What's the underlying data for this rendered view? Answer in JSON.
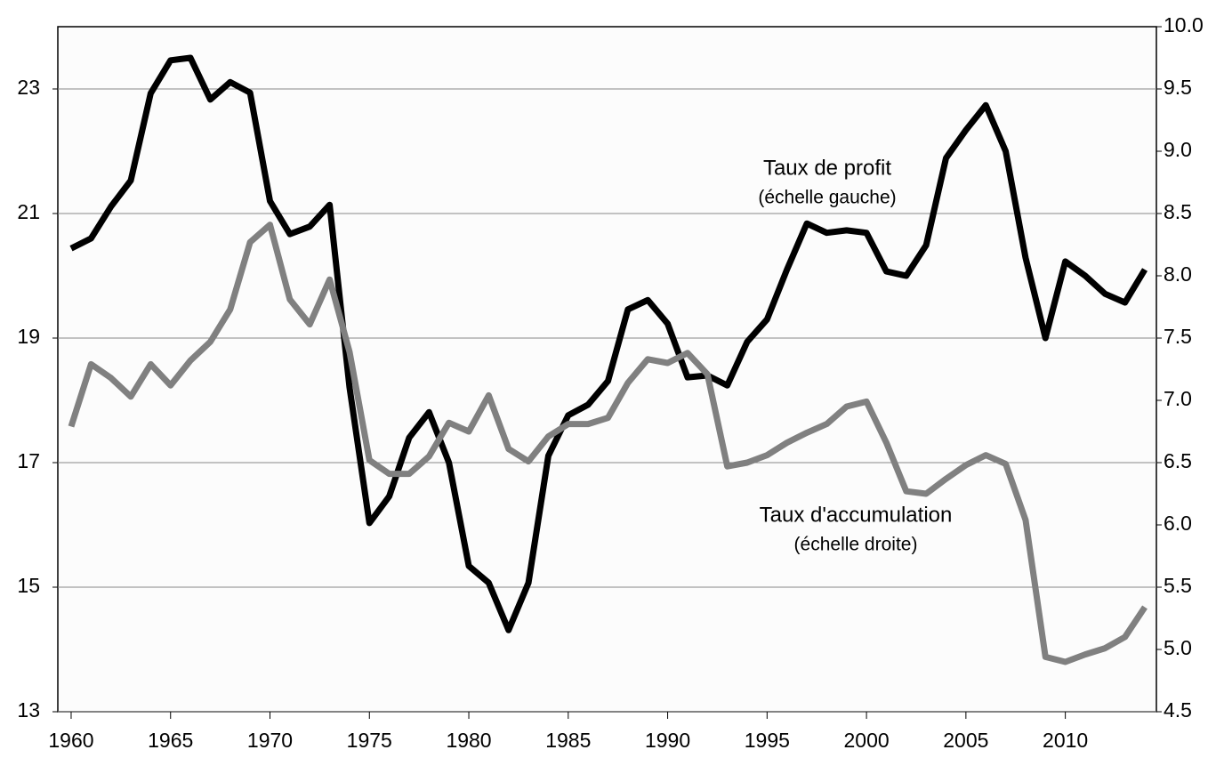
{
  "chart_data": {
    "type": "line",
    "x": [
      1960,
      1961,
      1962,
      1963,
      1964,
      1965,
      1966,
      1967,
      1968,
      1969,
      1970,
      1971,
      1972,
      1973,
      1974,
      1975,
      1976,
      1977,
      1978,
      1979,
      1980,
      1981,
      1982,
      1983,
      1984,
      1985,
      1986,
      1987,
      1988,
      1989,
      1990,
      1991,
      1992,
      1993,
      1994,
      1995,
      1996,
      1997,
      1998,
      1999,
      2000,
      2001,
      2002,
      2003,
      2004,
      2005,
      2006,
      2007,
      2008,
      2009,
      2010,
      2011,
      2012,
      2013,
      2014
    ],
    "series": [
      {
        "name": "Taux de profit",
        "color": "#000000",
        "axis": "y",
        "values": [
          20.44,
          20.6,
          21.11,
          21.53,
          22.93,
          23.46,
          23.5,
          22.83,
          23.11,
          22.94,
          21.2,
          20.67,
          20.79,
          21.14,
          18.21,
          16.03,
          16.46,
          17.4,
          17.81,
          17.0,
          15.34,
          15.07,
          14.31,
          15.07,
          17.11,
          17.76,
          17.93,
          18.31,
          19.46,
          19.61,
          19.23,
          18.37,
          18.4,
          18.24,
          18.94,
          19.3,
          20.1,
          20.84,
          20.69,
          20.73,
          20.69,
          20.07,
          20.0,
          20.49,
          21.89,
          22.34,
          22.74,
          22.0,
          20.29,
          19.0,
          20.23,
          20.0,
          19.71,
          19.57,
          20.1
        ]
      },
      {
        "name": "Taux d'accumulation",
        "color": "#808080",
        "axis": "y2",
        "values": [
          6.79,
          7.29,
          7.18,
          7.03,
          7.29,
          7.12,
          7.32,
          7.47,
          7.73,
          8.27,
          8.41,
          7.81,
          7.61,
          7.97,
          7.39,
          6.52,
          6.41,
          6.41,
          6.55,
          6.82,
          6.75,
          7.04,
          6.61,
          6.51,
          6.71,
          6.81,
          6.81,
          6.86,
          7.14,
          7.33,
          7.3,
          7.38,
          7.21,
          6.47,
          6.5,
          6.56,
          6.66,
          6.74,
          6.81,
          6.95,
          6.99,
          6.66,
          6.27,
          6.25,
          6.37,
          6.48,
          6.56,
          6.49,
          6.04,
          4.94,
          4.9,
          4.96,
          5.01,
          5.1,
          5.34
        ]
      }
    ],
    "annotations": [
      {
        "text": "Taux de profit",
        "subtext": "(échelle gauche)"
      },
      {
        "text": "Taux d'accumulation",
        "subtext": "(échelle droite)"
      }
    ],
    "xlim": [
      1959.33,
      2014.58
    ],
    "xticks": [
      1960,
      1965,
      1970,
      1975,
      1980,
      1985,
      1990,
      1995,
      2000,
      2005,
      2010
    ],
    "ylim": [
      13,
      24
    ],
    "yticks": [
      13,
      15,
      17,
      19,
      21,
      23
    ],
    "y2lim": [
      4.5,
      10
    ],
    "y2ticks": [
      4.5,
      {
        "value": 5,
        "label": "5.0"
      },
      5.5,
      {
        "value": 6,
        "label": "6.0"
      },
      6.5,
      {
        "value": 7,
        "label": "7.0"
      },
      7.5,
      {
        "value": 8,
        "label": "8.0"
      },
      8.5,
      {
        "value": 9,
        "label": "9.0"
      },
      9.5,
      {
        "value": 10,
        "label": "10.0"
      }
    ],
    "grid": true
  }
}
